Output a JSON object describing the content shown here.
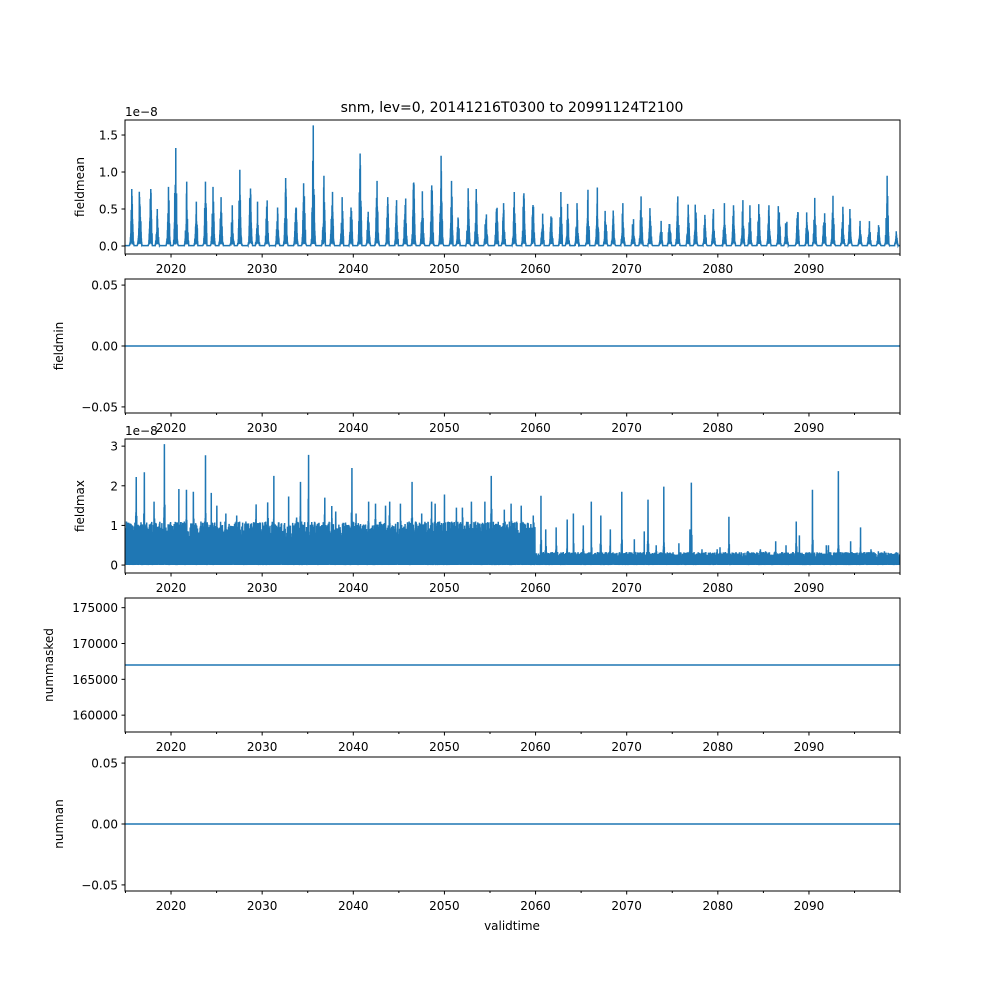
{
  "chart_data": [
    {
      "type": "line",
      "title": "snm, lev=0, 20141216T0300 to 20991124T2100",
      "ylabel": "fieldmean",
      "offset_text": "1e−8",
      "xlim": [
        2014.95,
        2099.99
      ],
      "ylim": [
        -0.108,
        1.703
      ],
      "yticks": [
        0.0,
        0.5,
        1.0,
        1.5
      ],
      "ytick_labels": [
        "0.0",
        "0.5",
        "1.0",
        "1.5"
      ],
      "annual_peak_years_start": 2015,
      "annual_peaks": [
        0.77,
        1.06,
        0.86,
        0.5,
        0.8,
        1.42,
        0.87,
        0.6,
        0.87,
        0.8,
        0.66,
        0.55,
        1.03,
        0.93,
        0.6,
        0.74,
        0.52,
        0.92,
        0.69,
        1.0,
        1.63,
        0.95,
        0.86,
        0.66,
        0.7,
        1.25,
        0.62,
        0.88,
        0.66,
        0.62,
        0.78,
        1.0,
        0.74,
        0.95,
        1.22,
        0.88,
        0.56,
        0.78,
        0.77,
        0.6,
        0.78,
        0.58,
        0.73,
        0.79,
        0.79,
        0.5,
        0.56,
        0.73,
        0.57,
        0.58,
        0.76,
        0.79,
        0.57,
        0.48,
        0.58,
        0.45,
        0.67,
        0.62,
        0.34,
        0.6,
        0.67,
        0.56,
        0.7,
        0.42,
        0.5,
        0.58,
        0.55,
        0.62,
        0.55,
        0.64,
        0.55,
        0.81,
        0.5,
        0.57,
        0.55,
        0.65,
        0.62,
        0.68,
        0.53,
        0.5,
        0.34,
        0.37,
        0.34,
        0.95,
        0.2
      ]
    },
    {
      "type": "line",
      "ylabel": "fieldmin",
      "xlim": [
        2014.95,
        2099.99
      ],
      "ylim": [
        -0.055,
        0.055
      ],
      "yticks": [
        -0.05,
        0.0,
        0.05
      ],
      "ytick_labels": [
        "−0.05",
        "0.00",
        "0.05"
      ],
      "constant_value": 0
    },
    {
      "type": "line",
      "ylabel": "fieldmax",
      "offset_text": "1e−8",
      "xlim": [
        2014.95,
        2099.99
      ],
      "ylim": [
        -0.2,
        3.18
      ],
      "yticks": [
        0,
        1,
        2,
        3
      ],
      "ytick_labels": [
        "0",
        "1",
        "2",
        "3"
      ],
      "annual_peak_years_start": 2015,
      "baseline_before_2060": 1.0,
      "baseline_after_2060": 0.3,
      "annual_peaks": [
        1.1,
        2.22,
        2.34,
        1.6,
        3.05,
        1.92,
        1.9,
        1.85,
        2.77,
        1.82,
        1.5,
        1.3,
        1.25,
        1.1,
        1.53,
        1.58,
        2.25,
        1.73,
        1.2,
        2.1,
        2.78,
        1.7,
        1.49,
        1.35,
        2.45,
        1.3,
        1.6,
        1.55,
        1.5,
        1.6,
        1.55,
        2.1,
        1.3,
        1.6,
        1.55,
        1.78,
        1.45,
        1.45,
        1.6,
        1.6,
        2.25,
        1.4,
        1.55,
        1.5,
        1.25,
        1.75,
        0.9,
        0.95,
        1.15,
        1.3,
        1.0,
        1.6,
        1.25,
        0.9,
        1.85,
        0.65,
        0.85,
        1.65,
        0.5,
        1.98,
        0.55,
        0.9,
        2.08,
        0.4,
        0.4,
        0.45,
        1.22,
        0.3,
        0.35,
        0.4,
        0.35,
        0.6,
        0.5,
        1.1,
        0.75,
        1.9,
        0.5,
        0.5,
        2.37,
        0.6,
        0.95,
        0.4,
        0.35,
        0.35,
        0.3
      ]
    },
    {
      "type": "line",
      "ylabel": "nummasked",
      "xlim": [
        2014.95,
        2099.99
      ],
      "ylim": [
        157650,
        176350
      ],
      "yticks": [
        160000,
        165000,
        170000,
        175000
      ],
      "ytick_labels": [
        "160000",
        "165000",
        "170000",
        "175000"
      ],
      "constant_value": 167000
    },
    {
      "type": "line",
      "ylabel": "numnan",
      "xlabel": "validtime",
      "xlim": [
        2014.95,
        2099.99
      ],
      "ylim": [
        -0.055,
        0.055
      ],
      "yticks": [
        -0.05,
        0.0,
        0.05
      ],
      "ytick_labels": [
        "−0.05",
        "0.00",
        "0.05"
      ],
      "constant_value": 0
    }
  ],
  "xaxis": {
    "major_ticks": [
      2020,
      2030,
      2040,
      2050,
      2060,
      2070,
      2080,
      2090
    ],
    "major_labels": [
      "2020",
      "2030",
      "2040",
      "2050",
      "2060",
      "2070",
      "2080",
      "2090"
    ],
    "minor_ticks": [
      2015,
      2025,
      2035,
      2045,
      2055,
      2065,
      2075,
      2085,
      2095,
      2100
    ]
  },
  "colors": {
    "line": "#1f77b4"
  }
}
